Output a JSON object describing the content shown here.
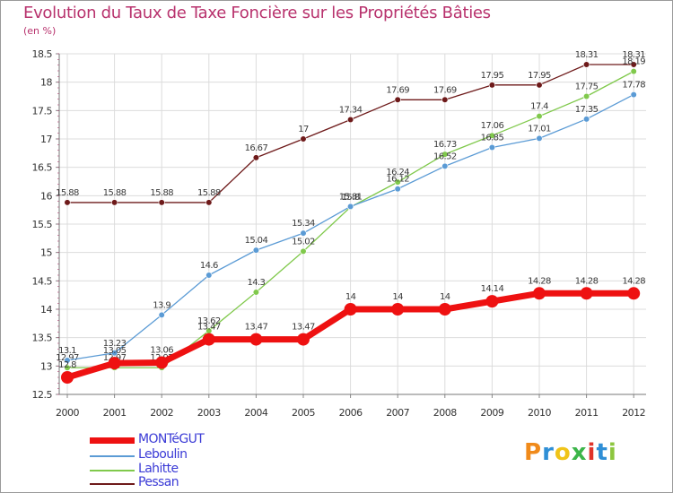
{
  "title": "Evolution du Taux de Taxe Foncière sur les Propriétés Bâties",
  "unit_label": "(en %)",
  "logo": {
    "letters": [
      "P",
      "r",
      "o",
      "x",
      "i",
      "t",
      "i"
    ],
    "colors": [
      "#f08a1a",
      "#2f8fd6",
      "#f0c419",
      "#3cb54a",
      "#e0342b",
      "#2f8fd6",
      "#8dc63f"
    ]
  },
  "chart_data": {
    "type": "line",
    "title": "Evolution du Taux de Taxe Foncière sur les Propriétés Bâties",
    "ylabel": "(en %)",
    "x": [
      "2000",
      "2001",
      "2002",
      "2003",
      "2004",
      "2005",
      "2006",
      "2007",
      "2008",
      "2009",
      "2010",
      "2011",
      "2012"
    ],
    "ylim": [
      12.5,
      18.5
    ],
    "yticks": [
      "12.5",
      "13",
      "13.5",
      "14",
      "14.5",
      "15",
      "15.5",
      "16",
      "16.5",
      "17",
      "17.5",
      "18",
      "18.5"
    ],
    "grid": true,
    "legend_position": "bottom-left",
    "series": [
      {
        "name": "Pessan",
        "color": "#6e1a1a",
        "values": [
          15.88,
          15.88,
          15.88,
          15.88,
          16.67,
          17,
          17.34,
          17.69,
          17.69,
          17.95,
          17.95,
          18.31,
          18.31
        ],
        "labels": [
          "15.88",
          "15.88",
          "15.88",
          "15.88",
          "16.67",
          "17",
          "17.34",
          "17.69",
          "17.69",
          "17.95",
          "17.95",
          "18.31",
          "18.31"
        ]
      },
      {
        "name": "Lahitte",
        "color": "#80c94c",
        "values": [
          12.97,
          12.97,
          12.97,
          13.62,
          14.3,
          15.02,
          15.8,
          16.24,
          16.73,
          17.06,
          17.4,
          17.75,
          18.19
        ],
        "labels": [
          "12.97",
          "12.97",
          "12.97",
          "13.62",
          "14.3",
          "15.02",
          "15.8",
          "16.24",
          "16.73",
          "17.06",
          "17.4",
          "17.75",
          "18.19"
        ]
      },
      {
        "name": "Leboulin",
        "color": "#5b9bd5",
        "values": [
          13.1,
          13.23,
          13.9,
          14.6,
          15.04,
          15.34,
          15.81,
          16.12,
          16.52,
          16.85,
          17.01,
          17.35,
          17.78
        ],
        "labels": [
          "13.1",
          "13.23",
          "13.9",
          "14.6",
          "15.04",
          "15.34",
          "15.81",
          "16.12",
          "16.52",
          "16.85",
          "17.01",
          "17.35",
          "17.78"
        ]
      },
      {
        "name": "MONTéGUT",
        "color": "#ee1111",
        "values": [
          12.8,
          13.05,
          13.06,
          13.47,
          13.47,
          13.47,
          14,
          14,
          14,
          14.14,
          14.28,
          14.28,
          14.28
        ],
        "labels": [
          "12.8",
          "13.05",
          "13.06",
          "13.47",
          "13.47",
          "13.47",
          "14",
          "14",
          "14",
          "14.14",
          "14.28",
          "14.28",
          "14.28"
        ]
      }
    ],
    "legend": [
      {
        "name": "MONTéGUT",
        "color": "#ee1111"
      },
      {
        "name": "Leboulin",
        "color": "#5b9bd5"
      },
      {
        "name": "Lahitte",
        "color": "#80c94c"
      },
      {
        "name": "Pessan",
        "color": "#6e1a1a"
      }
    ]
  }
}
